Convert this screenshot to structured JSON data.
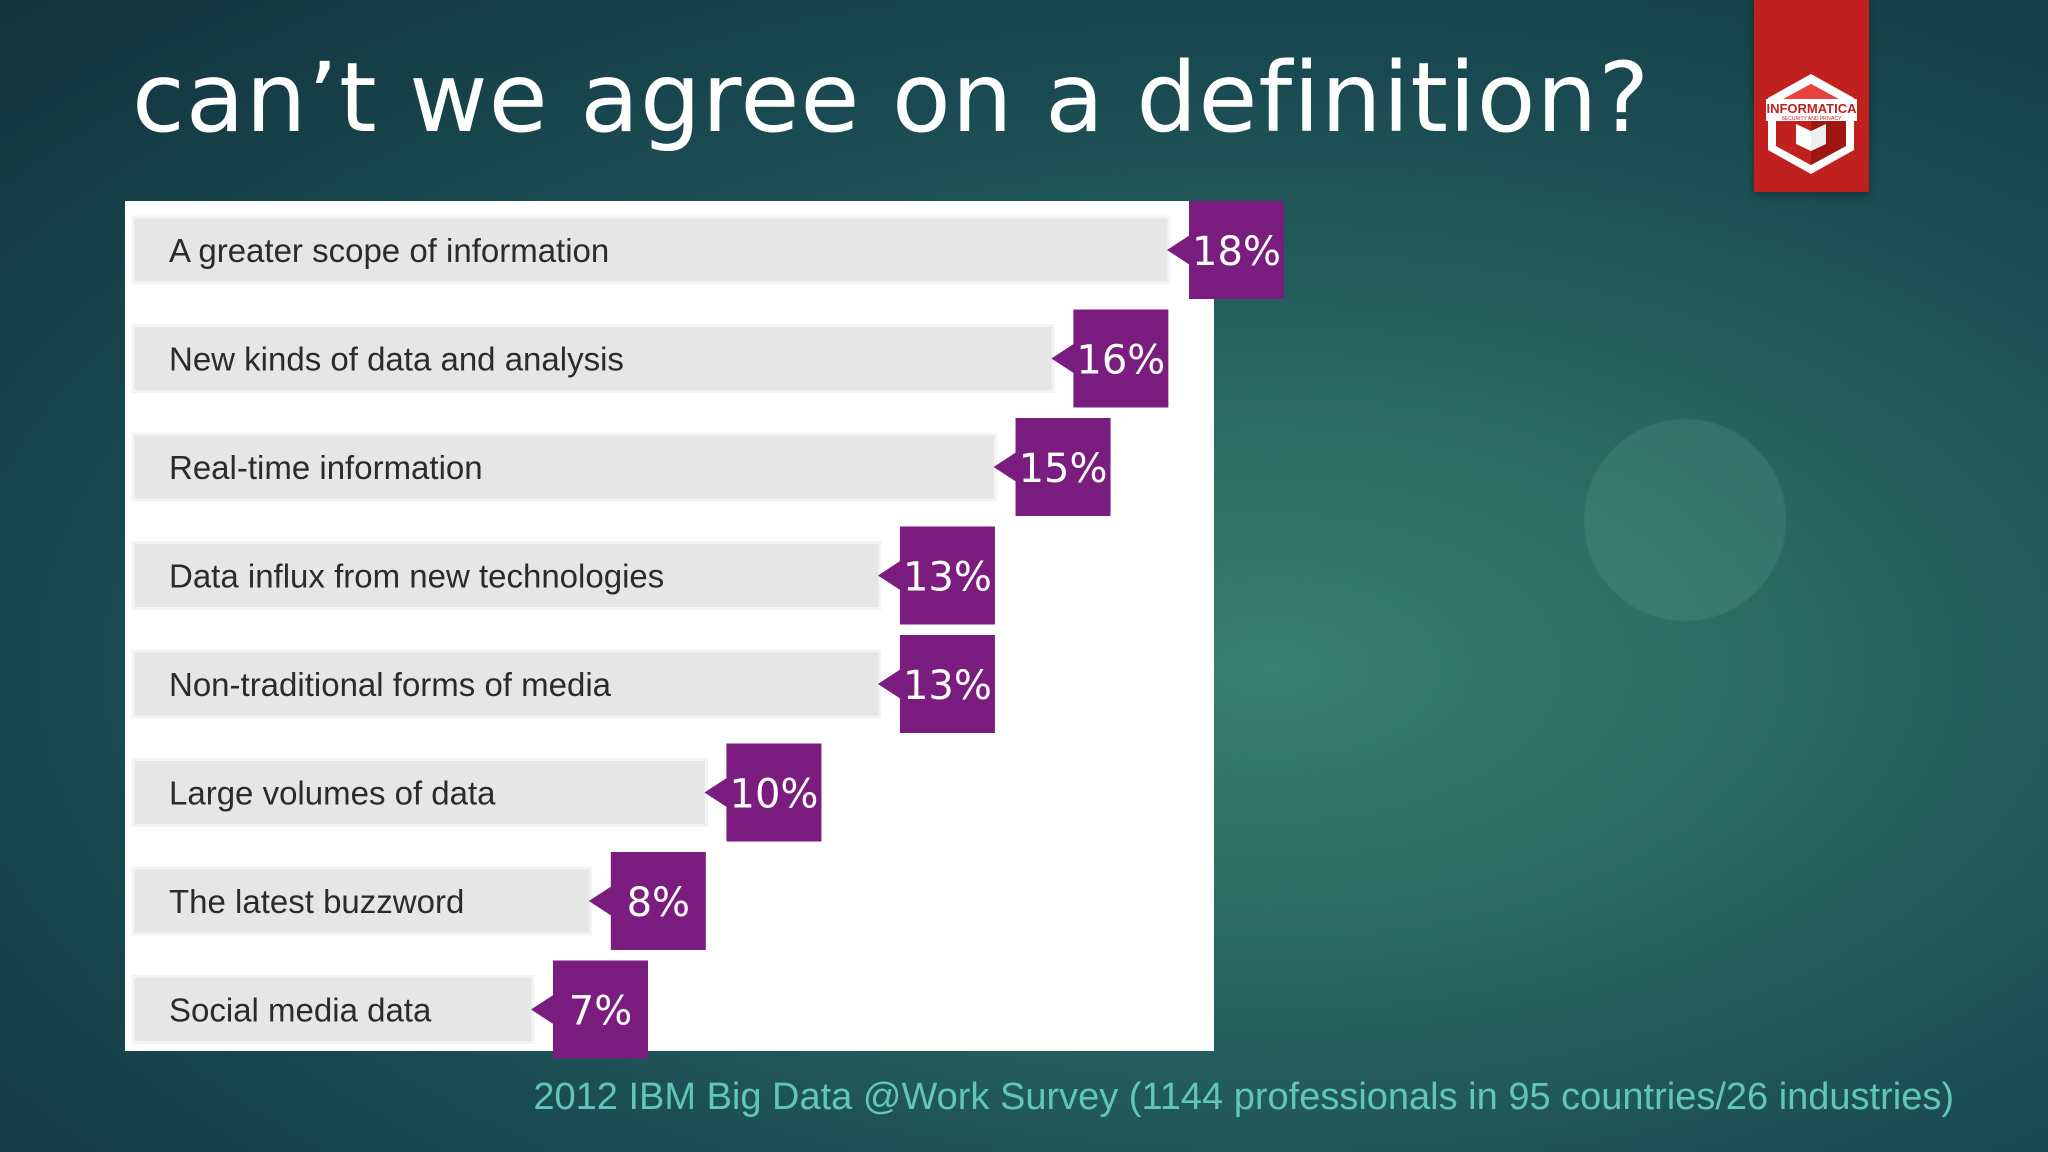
{
  "slide": {
    "title": "can’t we agree on a definition?",
    "source": "2012 IBM Big Data @Work Survey (1144 professionals in 95 countries/26 industries)"
  },
  "logo": {
    "text": "INFORMATICA",
    "subtext": "SECURITY AND PRIVACY",
    "icon": "red-white-cube-icon"
  },
  "colors": {
    "accent": "#7b1c7f",
    "bar": "#e6e6e6",
    "logo_red": "#c0211f",
    "source_text": "#5fc6b8"
  },
  "chart_data": {
    "type": "bar",
    "orientation": "horizontal",
    "categories": [
      "A greater scope of information",
      "New kinds of data and analysis",
      "Real-time information",
      "Data influx from new technologies",
      "Non-traditional forms of media",
      "Large volumes of data",
      "The latest buzzword",
      "Social media data"
    ],
    "values": [
      18,
      16,
      15,
      13,
      13,
      10,
      8,
      7
    ],
    "value_labels": [
      "18%",
      "16%",
      "15%",
      "13%",
      "13%",
      "10%",
      "8%",
      "7%"
    ],
    "unit": "%",
    "xlim": [
      0,
      18
    ],
    "grid": false,
    "legend": "none"
  }
}
